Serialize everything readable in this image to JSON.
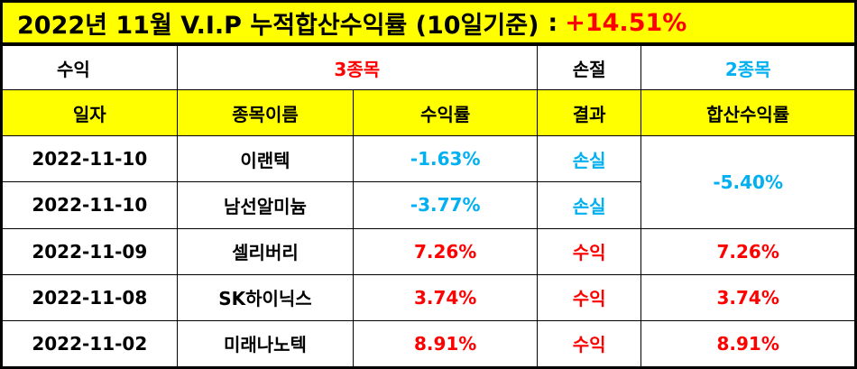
{
  "title": {
    "text": "2022년 11월 V.I.P 누적합산수익률 (10일기준)",
    "separator": ":",
    "total_return": "+14.51%"
  },
  "summary": {
    "profit_label": "수익",
    "profit_count": "3종목",
    "loss_label": "손절",
    "loss_count": "2종목"
  },
  "headers": {
    "date": "일자",
    "stock": "종목이름",
    "return": "수익률",
    "result": "결과",
    "combined": "합산수익률"
  },
  "rows": [
    {
      "date": "2022-11-10",
      "stock": "이랜텍",
      "return": "-1.63%",
      "result": "손실"
    },
    {
      "date": "2022-11-10",
      "stock": "남선알미늄",
      "return": "-3.77%",
      "result": "손실"
    },
    {
      "date": "2022-11-09",
      "stock": "셀리버리",
      "return": "7.26%",
      "result": "수익",
      "combined": "7.26%"
    },
    {
      "date": "2022-11-08",
      "stock": "SK하이닉스",
      "return": "3.74%",
      "result": "수익",
      "combined": "3.74%"
    },
    {
      "date": "2022-11-02",
      "stock": "미래나노텍",
      "return": "8.91%",
      "result": "수익",
      "combined": "8.91%"
    }
  ],
  "merged_combined": "-5.40%",
  "colors": {
    "header_bg": "#ffff00",
    "positive": "#ff0000",
    "negative": "#00b0f0"
  }
}
